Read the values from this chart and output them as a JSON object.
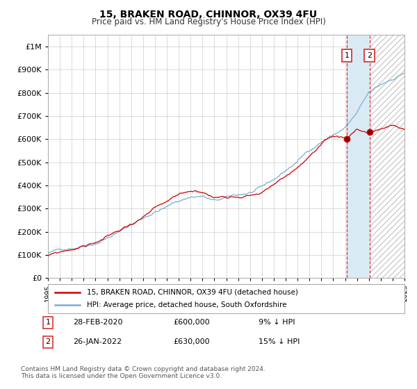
{
  "title": "15, BRAKEN ROAD, CHINNOR, OX39 4FU",
  "subtitle": "Price paid vs. HM Land Registry's House Price Index (HPI)",
  "ytick_values": [
    0,
    100000,
    200000,
    300000,
    400000,
    500000,
    600000,
    700000,
    800000,
    900000,
    1000000
  ],
  "ylim": [
    0,
    1050000
  ],
  "xlim": [
    1995,
    2025
  ],
  "red_line_color": "#cc0000",
  "blue_line_color": "#7aadcf",
  "legend_label_red": "15, BRAKEN ROAD, CHINNOR, OX39 4FU (detached house)",
  "legend_label_blue": "HPI: Average price, detached house, South Oxfordshire",
  "transaction1_date": "28-FEB-2020",
  "transaction1_price": "£600,000",
  "transaction1_hpi": "9% ↓ HPI",
  "transaction2_date": "26-JAN-2022",
  "transaction2_price": "£630,000",
  "transaction2_hpi": "15% ↓ HPI",
  "footnote": "Contains HM Land Registry data © Crown copyright and database right 2024.\nThis data is licensed under the Open Government Licence v3.0.",
  "background_color": "#ffffff",
  "grid_color": "#cccccc",
  "shaded_color": "#daeaf5",
  "vline_color": "#dd3333",
  "vline_x1": 2020.15,
  "vline_x2": 2022.05,
  "t1_x": 2020.15,
  "t1_y": 600000,
  "t2_x": 2022.05,
  "t2_y": 630000,
  "blue_anchors_x": [
    1995,
    1996,
    1997,
    1998,
    1999,
    2000,
    2001,
    2002,
    2003,
    2004,
    2005,
    2006,
    2007,
    2008,
    2009,
    2010,
    2011,
    2012,
    2013,
    2014,
    2015,
    2016,
    2017,
    2018,
    2019,
    2020,
    2021,
    2022,
    2023,
    2024,
    2025
  ],
  "blue_anchors_y": [
    108000,
    120000,
    135000,
    150000,
    168000,
    195000,
    220000,
    250000,
    280000,
    310000,
    330000,
    355000,
    375000,
    380000,
    355000,
    365000,
    375000,
    385000,
    400000,
    430000,
    470000,
    510000,
    560000,
    600000,
    630000,
    660000,
    720000,
    800000,
    830000,
    860000,
    890000
  ],
  "red_anchors_x": [
    1995,
    1996,
    1997,
    1998,
    1999,
    2000,
    2001,
    2002,
    2003,
    2004,
    2005,
    2006,
    2007,
    2008,
    2009,
    2010,
    2011,
    2012,
    2013,
    2014,
    2015,
    2016,
    2017,
    2018,
    2019,
    2020.15,
    2021,
    2022.05,
    2023,
    2024,
    2024.9
  ],
  "red_anchors_y": [
    95000,
    108000,
    122000,
    138000,
    155000,
    180000,
    205000,
    235000,
    265000,
    295000,
    315000,
    338000,
    358000,
    360000,
    335000,
    345000,
    355000,
    365000,
    378000,
    408000,
    445000,
    485000,
    535000,
    575000,
    605000,
    600000,
    645000,
    630000,
    645000,
    655000,
    640000
  ],
  "noise_seed_blue": 42,
  "noise_seed_red": 99,
  "noise_amplitude_blue": 8000,
  "noise_amplitude_red": 7000
}
